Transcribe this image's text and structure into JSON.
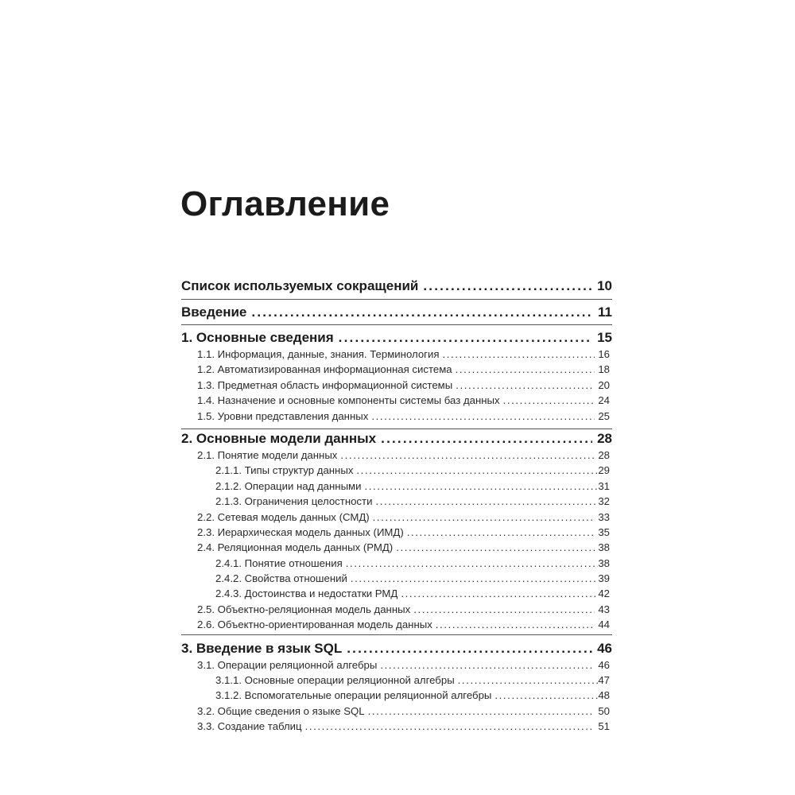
{
  "title": "Оглавление",
  "sections": [
    {
      "heading": {
        "label": "Список используемых сокращений",
        "page": "10"
      },
      "items": []
    },
    {
      "heading": {
        "label": "Введение",
        "page": "11"
      },
      "items": []
    },
    {
      "heading": {
        "label": "1. Основные сведения",
        "page": "15"
      },
      "items": [
        {
          "level": 1,
          "label": "1.1. Информация, данные, знания. Терминология",
          "page": "16"
        },
        {
          "level": 1,
          "label": "1.2. Автоматизированная информационная система",
          "page": "18"
        },
        {
          "level": 1,
          "label": "1.3. Предметная область информационной системы",
          "page": "20"
        },
        {
          "level": 1,
          "label": "1.4. Назначение и основные компоненты системы баз данных",
          "page": "24"
        },
        {
          "level": 1,
          "label": "1.5. Уровни представления данных",
          "page": "25"
        }
      ]
    },
    {
      "heading": {
        "label": "2. Основные модели данных",
        "page": "28"
      },
      "items": [
        {
          "level": 1,
          "label": "2.1. Понятие модели данных",
          "page": "28"
        },
        {
          "level": 2,
          "label": "2.1.1. Типы структур данных",
          "page": "29"
        },
        {
          "level": 2,
          "label": "2.1.2. Операции над данными",
          "page": "31"
        },
        {
          "level": 2,
          "label": "2.1.3. Ограничения целостности",
          "page": "32"
        },
        {
          "level": 1,
          "label": "2.2. Сетевая модель данных (СМД)",
          "page": "33"
        },
        {
          "level": 1,
          "label": "2.3. Иерархическая модель данных (ИМД)",
          "page": "35"
        },
        {
          "level": 1,
          "label": "2.4. Реляционная модель данных (РМД)",
          "page": "38"
        },
        {
          "level": 2,
          "label": "2.4.1. Понятие отношения",
          "page": "38"
        },
        {
          "level": 2,
          "label": "2.4.2. Свойства отношений",
          "page": "39"
        },
        {
          "level": 2,
          "label": "2.4.3. Достоинства и недостатки РМД",
          "page": "42"
        },
        {
          "level": 1,
          "label": "2.5. Объектно-реляционная модель данных",
          "page": "43"
        },
        {
          "level": 1,
          "label": "2.6. Объектно-ориентированная модель данных",
          "page": "44"
        }
      ]
    },
    {
      "heading": {
        "label": "3. Введение в язык SQL",
        "page": "46"
      },
      "items": [
        {
          "level": 1,
          "label": "3.1. Операции реляционной алгебры",
          "page": "46"
        },
        {
          "level": 2,
          "label": "3.1.1. Основные операции реляционной алгебры",
          "page": "47"
        },
        {
          "level": 2,
          "label": "3.1.2. Вспомогательные операции реляционной алгебры",
          "page": "48"
        },
        {
          "level": 1,
          "label": "3.2. Общие сведения о языке SQL",
          "page": "50"
        },
        {
          "level": 1,
          "label": "3.3. Создание таблиц",
          "page": "51"
        }
      ]
    }
  ]
}
